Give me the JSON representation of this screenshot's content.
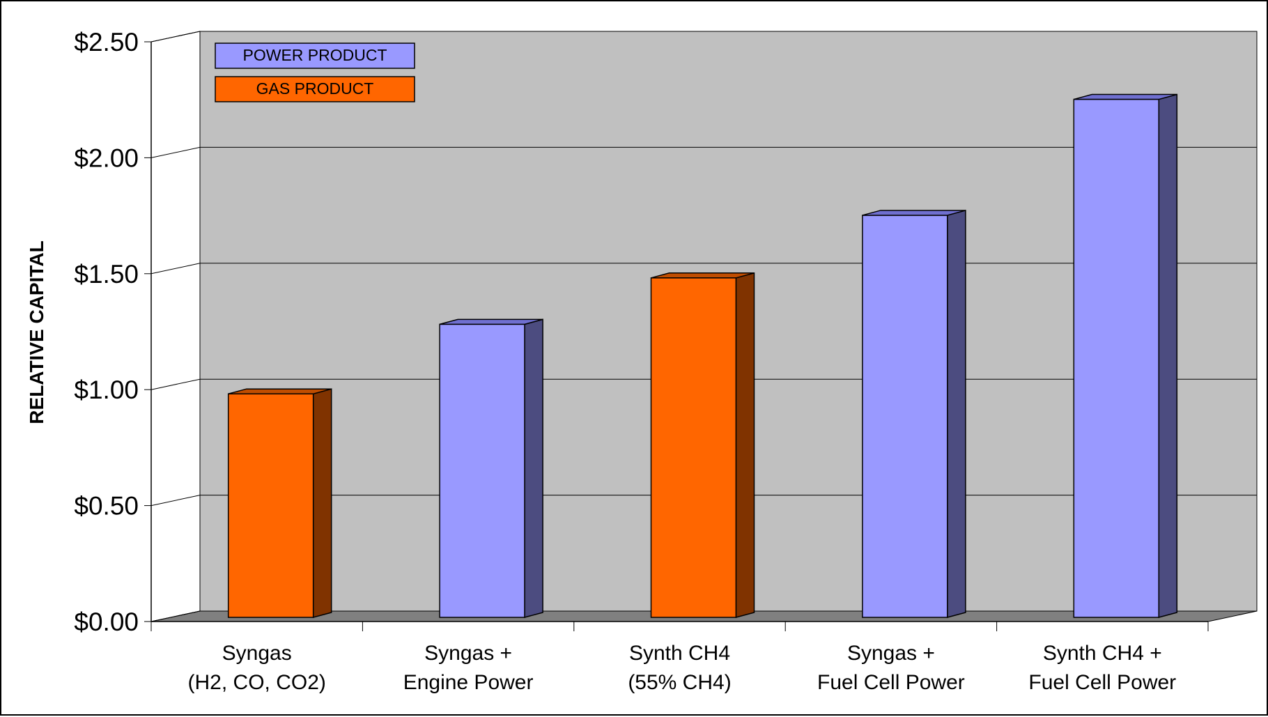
{
  "chart_data": {
    "type": "bar",
    "title": "",
    "xlabel": "",
    "ylabel": "RELATIVE CAPITAL",
    "ylim": [
      0,
      2.5
    ],
    "y_ticks": [
      "$0.00",
      "$0.50",
      "$1.00",
      "$1.50",
      "$2.00",
      "$2.50"
    ],
    "y_tick_values": [
      0,
      0.5,
      1.0,
      1.5,
      2.0,
      2.5
    ],
    "grid": true,
    "style": "3d-clustered-column",
    "categories": [
      [
        "Syngas",
        "(H2, CO, CO2)"
      ],
      [
        "Syngas +",
        "Engine Power"
      ],
      [
        "Synth CH4",
        "(55% CH4)"
      ],
      [
        "Syngas +",
        "Fuel Cell Power"
      ],
      [
        "Synth CH4 +",
        "Fuel Cell Power"
      ]
    ],
    "values": [
      1.0,
      1.3,
      1.5,
      1.77,
      2.27
    ],
    "bar_series": [
      "GAS PRODUCT",
      "POWER PRODUCT",
      "GAS PRODUCT",
      "POWER PRODUCT",
      "POWER PRODUCT"
    ],
    "series": [
      {
        "name": "POWER PRODUCT",
        "color": "#9999ff",
        "side_color": "#4c4c80",
        "values": [
          null,
          1.3,
          null,
          1.77,
          2.27
        ]
      },
      {
        "name": "GAS PRODUCT",
        "color": "#ff6600",
        "side_color": "#803300",
        "values": [
          1.0,
          null,
          1.5,
          null,
          null
        ]
      }
    ],
    "legend_position": "top-left"
  },
  "colors": {
    "plot_wall": "#c0c0c0",
    "floor": "#808080",
    "gridline": "#000000"
  }
}
